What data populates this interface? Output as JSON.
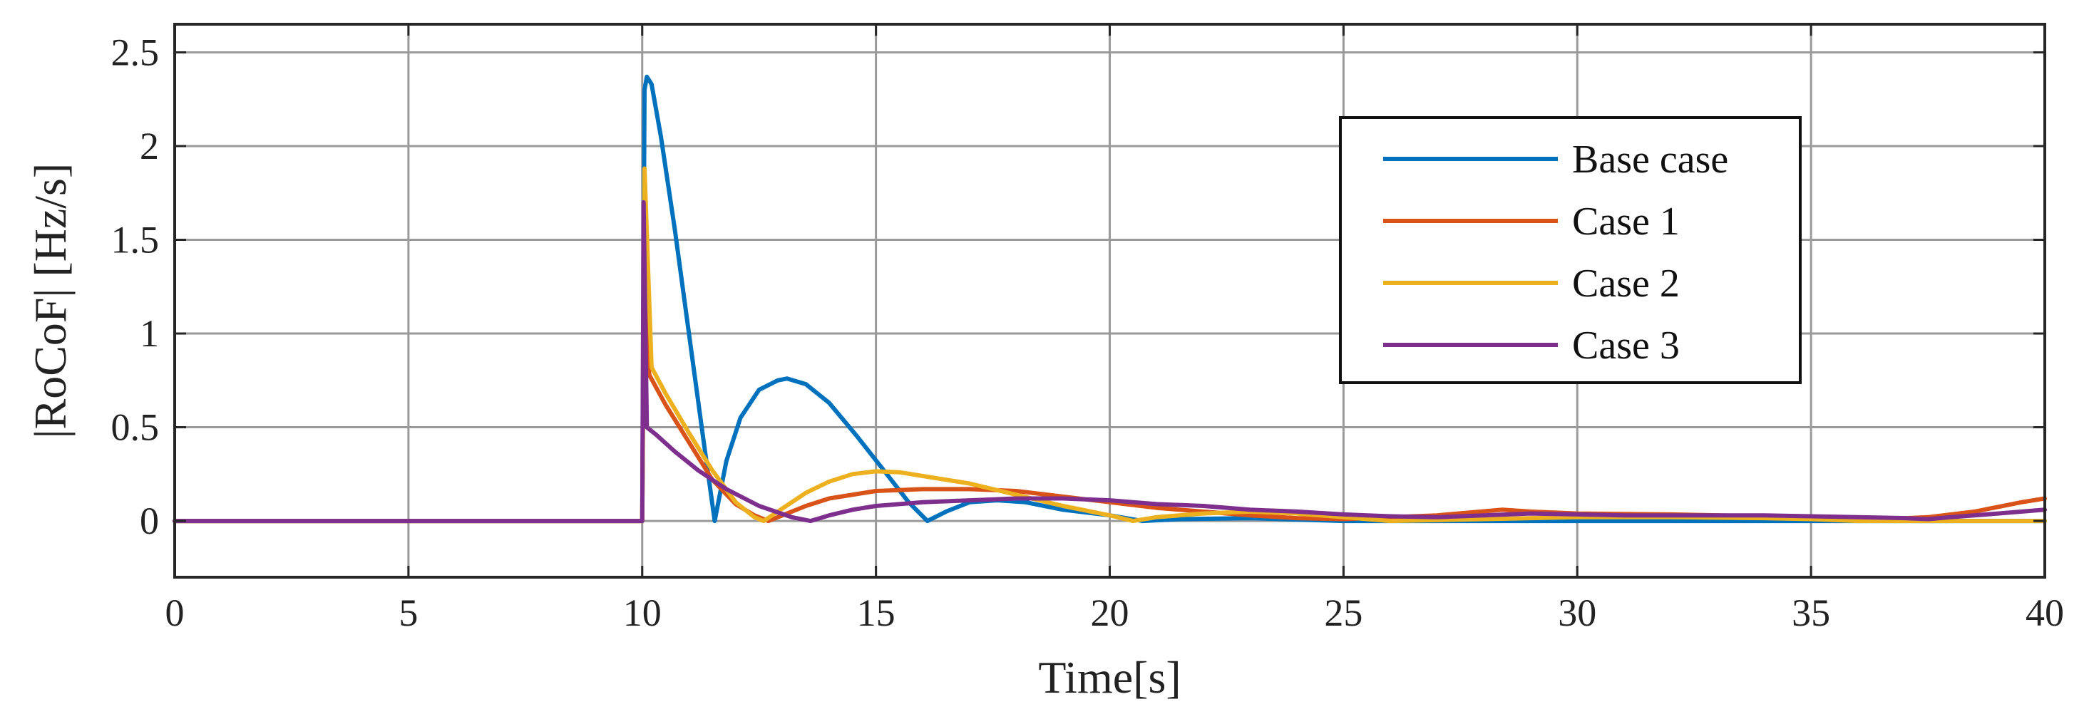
{
  "chart_data": {
    "type": "line",
    "title": "",
    "xlabel": "Time[s]",
    "ylabel": "|RoCoF| [Hz/s]",
    "xlim": [
      0,
      40
    ],
    "ylim": [
      -0.3,
      2.65
    ],
    "xticks": [
      0,
      5,
      10,
      15,
      20,
      25,
      30,
      35,
      40
    ],
    "xtick_labels": [
      "0",
      "5",
      "10",
      "15",
      "20",
      "25",
      "30",
      "35",
      "40"
    ],
    "yticks": [
      0,
      0.5,
      1,
      1.5,
      2,
      2.5
    ],
    "ytick_labels": [
      "0",
      "0.5",
      "1",
      "1.5",
      "2",
      "2.5"
    ],
    "grid": true,
    "legend_position": "top-right",
    "series": [
      {
        "name": "Base case",
        "color": "#0072BD",
        "x": [
          0,
          10,
          10.05,
          10.1,
          10.2,
          10.4,
          10.7,
          11.0,
          11.3,
          11.55,
          11.8,
          12.1,
          12.5,
          12.9,
          13.1,
          13.5,
          14.0,
          14.6,
          15.2,
          15.7,
          16.1,
          16.5,
          17.0,
          17.6,
          18.2,
          19.0,
          20.0,
          20.7,
          21.5,
          23.0,
          25.0,
          27.0,
          30.0,
          35.0,
          40.0
        ],
        "y": [
          0,
          0,
          2.3,
          2.37,
          2.33,
          2.05,
          1.55,
          1.0,
          0.45,
          0.0,
          0.32,
          0.55,
          0.7,
          0.75,
          0.76,
          0.73,
          0.63,
          0.45,
          0.26,
          0.1,
          0.0,
          0.05,
          0.1,
          0.11,
          0.1,
          0.06,
          0.03,
          0.0,
          0.01,
          0.015,
          0.0,
          0.0,
          0.0,
          0.0,
          0.0
        ]
      },
      {
        "name": "Case 1",
        "color": "#D95319",
        "x": [
          0,
          10,
          10.05,
          10.15,
          10.5,
          11.0,
          11.5,
          12.0,
          12.4,
          12.7,
          13.0,
          13.5,
          14.0,
          15.0,
          16.0,
          17.0,
          18.0,
          19.0,
          20.0,
          21.0,
          22.0,
          23.0,
          24.0,
          25.0,
          26.0,
          27.0,
          28.4,
          29.0,
          30.0,
          32.0,
          34.0,
          35.5,
          36.5,
          37.5,
          38.5,
          39.5,
          40.0
        ],
        "y": [
          0,
          0,
          1.6,
          0.78,
          0.62,
          0.42,
          0.22,
          0.09,
          0.03,
          0.0,
          0.03,
          0.08,
          0.12,
          0.16,
          0.17,
          0.17,
          0.16,
          0.13,
          0.1,
          0.07,
          0.05,
          0.03,
          0.015,
          0.01,
          0.02,
          0.03,
          0.06,
          0.05,
          0.04,
          0.035,
          0.025,
          0.015,
          0.01,
          0.02,
          0.05,
          0.1,
          0.12
        ]
      },
      {
        "name": "Case 2",
        "color": "#EDB120",
        "x": [
          0,
          10,
          10.05,
          10.2,
          10.5,
          11.0,
          11.5,
          12.0,
          12.4,
          12.6,
          12.9,
          13.5,
          14.0,
          14.5,
          15.0,
          15.5,
          16.0,
          17.0,
          18.0,
          19.0,
          20.0,
          20.5,
          21.0,
          22.0,
          23.0,
          24.0,
          25.0,
          26.0,
          28.0,
          30.0,
          32.0,
          34.0,
          35.0,
          36.0,
          38.0,
          40.0
        ],
        "y": [
          0,
          0,
          1.88,
          0.82,
          0.68,
          0.47,
          0.27,
          0.1,
          0.02,
          0.0,
          0.05,
          0.15,
          0.21,
          0.25,
          0.265,
          0.26,
          0.24,
          0.2,
          0.14,
          0.08,
          0.03,
          0.0,
          0.02,
          0.04,
          0.05,
          0.04,
          0.02,
          0.0,
          0.01,
          0.02,
          0.02,
          0.015,
          0.01,
          0.0,
          0.0,
          0.0
        ]
      },
      {
        "name": "Case 3",
        "color": "#7E2F8E",
        "x": [
          0,
          10,
          10.03,
          10.1,
          10.3,
          10.7,
          11.2,
          11.8,
          12.5,
          13.2,
          13.6,
          14.0,
          14.5,
          15.0,
          16.0,
          17.0,
          18.0,
          19.0,
          20.0,
          21.0,
          22.0,
          23.0,
          24.0,
          25.0,
          26.0,
          27.0,
          28.0,
          29.0,
          30.0,
          31.0,
          32.0,
          33.0,
          34.0,
          35.0,
          36.0,
          37.0,
          37.5,
          38.0,
          39.0,
          40.0
        ],
        "y": [
          0,
          0,
          1.7,
          0.5,
          0.46,
          0.37,
          0.27,
          0.17,
          0.08,
          0.02,
          0.0,
          0.03,
          0.06,
          0.08,
          0.1,
          0.11,
          0.12,
          0.12,
          0.11,
          0.09,
          0.08,
          0.06,
          0.05,
          0.035,
          0.025,
          0.02,
          0.03,
          0.04,
          0.035,
          0.03,
          0.03,
          0.03,
          0.03,
          0.025,
          0.02,
          0.015,
          0.01,
          0.02,
          0.04,
          0.06
        ]
      }
    ]
  }
}
